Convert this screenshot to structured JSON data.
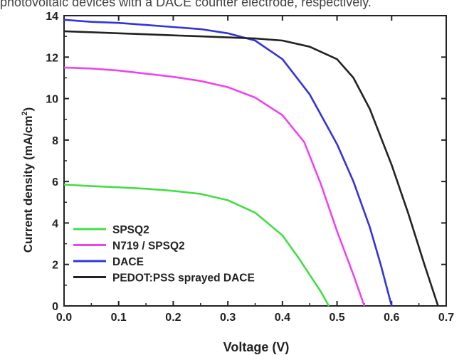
{
  "page_caption_fragment": "photovoltaic devices with a DACE counter electrode, respectively.",
  "chart_data": {
    "type": "line",
    "title": "",
    "xlabel": "Voltage (V)",
    "ylabel_main": "Current density (mA/cm",
    "ylabel_sup": "2",
    "ylabel_close": ")",
    "xlim": [
      0.0,
      0.7
    ],
    "ylim": [
      0,
      14
    ],
    "xticks": [
      "0.0",
      "0.1",
      "0.2",
      "0.3",
      "0.4",
      "0.5",
      "0.6",
      "0.7"
    ],
    "yticks": [
      "0",
      "2",
      "4",
      "6",
      "8",
      "10",
      "12",
      "14"
    ],
    "grid": false,
    "legend_position": "bottom-left",
    "series": [
      {
        "name": "SPSQ2",
        "color": "#44dd44",
        "x": [
          0.0,
          0.05,
          0.1,
          0.15,
          0.2,
          0.25,
          0.3,
          0.35,
          0.4,
          0.43,
          0.45,
          0.47,
          0.485
        ],
        "y": [
          5.85,
          5.78,
          5.72,
          5.65,
          5.55,
          5.4,
          5.1,
          4.5,
          3.4,
          2.3,
          1.5,
          0.7,
          0.0
        ]
      },
      {
        "name": "N719 / SPSQ2",
        "color": "#ee44ee",
        "x": [
          0.0,
          0.05,
          0.1,
          0.15,
          0.2,
          0.25,
          0.3,
          0.35,
          0.4,
          0.44,
          0.47,
          0.5,
          0.53,
          0.55
        ],
        "y": [
          11.5,
          11.45,
          11.35,
          11.2,
          11.05,
          10.85,
          10.55,
          10.05,
          9.2,
          7.9,
          5.9,
          3.6,
          1.5,
          0.0
        ]
      },
      {
        "name": "DACE",
        "color": "#3333dd",
        "x": [
          0.0,
          0.05,
          0.1,
          0.15,
          0.2,
          0.25,
          0.3,
          0.35,
          0.4,
          0.45,
          0.5,
          0.53,
          0.56,
          0.58,
          0.6
        ],
        "y": [
          13.8,
          13.7,
          13.65,
          13.55,
          13.45,
          13.35,
          13.15,
          12.8,
          11.9,
          10.2,
          7.8,
          6.0,
          3.8,
          2.0,
          0.0
        ]
      },
      {
        "name": "PEDOT:PSS sprayed DACE",
        "color": "#222222",
        "x": [
          0.0,
          0.05,
          0.1,
          0.15,
          0.2,
          0.25,
          0.3,
          0.35,
          0.4,
          0.45,
          0.5,
          0.53,
          0.56,
          0.6,
          0.63,
          0.66,
          0.685
        ],
        "y": [
          13.25,
          13.2,
          13.15,
          13.1,
          13.05,
          13.0,
          12.95,
          12.9,
          12.8,
          12.5,
          11.9,
          11.0,
          9.5,
          6.8,
          4.5,
          2.0,
          0.0
        ]
      }
    ]
  }
}
